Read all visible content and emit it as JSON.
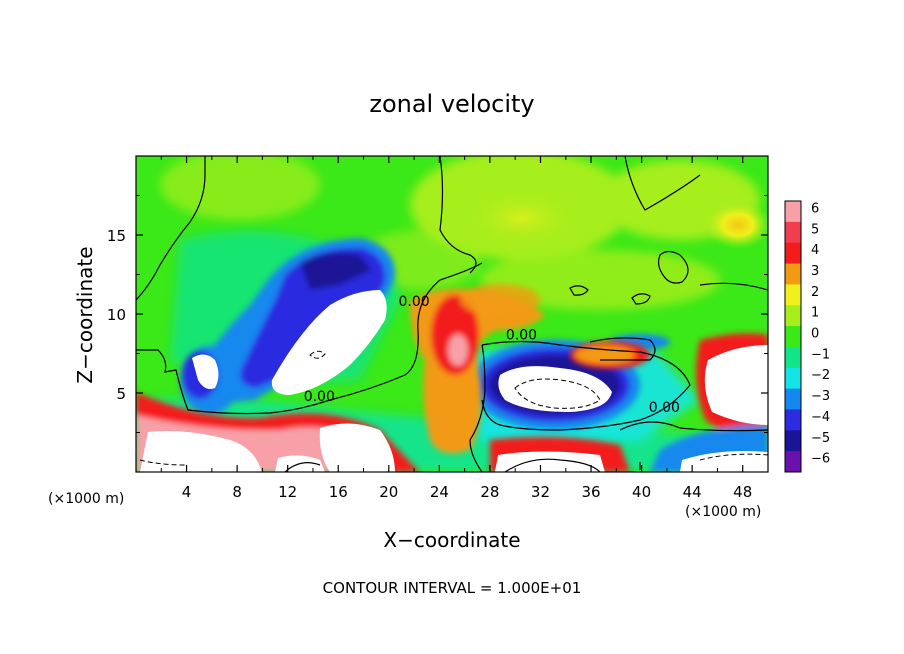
{
  "chart_data": {
    "type": "heatmap",
    "title": "zonal velocity",
    "xlabel": "X−coordinate",
    "ylabel": "Z−coordinate",
    "x_unit_left": "(×1000 m)",
    "x_unit_right": "(×1000 m)",
    "xlim": [
      0,
      50
    ],
    "ylim": [
      0,
      20
    ],
    "x_ticks": [
      4,
      8,
      12,
      16,
      20,
      24,
      28,
      32,
      36,
      40,
      44,
      48
    ],
    "y_ticks": [
      5,
      10,
      15
    ],
    "colorbar": {
      "ticks": [
        6,
        5,
        4,
        3,
        2,
        1,
        0,
        -1,
        -2,
        -3,
        -4,
        -5,
        -6
      ],
      "tick_labels": [
        "6",
        "5",
        "4",
        "3",
        "2",
        "1",
        "0",
        "−1",
        "−2",
        "−3",
        "−4",
        "−5",
        "−6"
      ],
      "colors": [
        "#f7a0a8",
        "#f23c50",
        "#f21c1c",
        "#f29a14",
        "#eff01c",
        "#a6ee1c",
        "#3be818",
        "#12e48a",
        "#14e4e8",
        "#1488ee",
        "#2c2ce0",
        "#1a1496",
        "#6a10ae"
      ]
    },
    "contour_labels": [
      {
        "text": "0.00",
        "x": 22.0,
        "y": 10.5
      },
      {
        "text": "0.00",
        "x": 30.5,
        "y": 8.4
      },
      {
        "text": "0.00",
        "x": 14.5,
        "y": 4.5
      },
      {
        "text": "0.00",
        "x": 41.8,
        "y": 3.8
      }
    ],
    "contour_interval": "CONTOUR INTERVAL = 1.000E+01"
  }
}
